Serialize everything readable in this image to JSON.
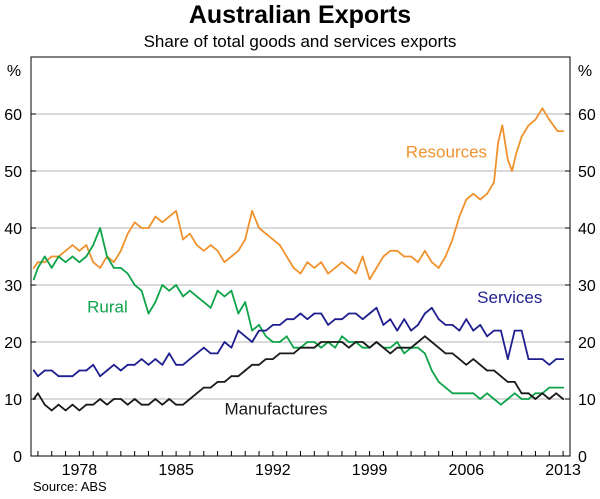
{
  "chart_data": {
    "type": "line",
    "title": "Australian Exports",
    "subtitle": "Share of total goods and services exports",
    "source": "Source: ABS",
    "ylabel_left": "%",
    "ylabel_right": "%",
    "xlim": [
      1974.5,
      2013.5
    ],
    "ylim": [
      0,
      70
    ],
    "yticks": [
      0,
      10,
      20,
      30,
      40,
      50,
      60
    ],
    "xticks": [
      1978,
      1985,
      1992,
      1999,
      2006,
      2013
    ],
    "grid": "horizontal",
    "series": [
      {
        "name": "Resources",
        "color": "#f0922e",
        "label_pos": [
          2007.5,
          52.4
        ],
        "label_anchor": "end",
        "x": [
          1974.7,
          1975.0,
          1975.5,
          1976.0,
          1976.5,
          1977.0,
          1977.5,
          1978.0,
          1978.5,
          1979.0,
          1979.5,
          1980.0,
          1980.5,
          1981.0,
          1981.5,
          1982.0,
          1982.5,
          1983.0,
          1983.5,
          1984.0,
          1984.5,
          1985.0,
          1985.5,
          1986.0,
          1986.5,
          1987.0,
          1987.5,
          1988.0,
          1988.5,
          1989.0,
          1989.5,
          1990.0,
          1990.5,
          1991.0,
          1991.5,
          1992.0,
          1992.5,
          1993.0,
          1993.5,
          1994.0,
          1994.5,
          1995.0,
          1995.5,
          1996.0,
          1996.5,
          1997.0,
          1997.5,
          1998.0,
          1998.5,
          1999.0,
          1999.5,
          2000.0,
          2000.5,
          2001.0,
          2001.5,
          2002.0,
          2002.5,
          2003.0,
          2003.5,
          2004.0,
          2004.5,
          2005.0,
          2005.5,
          2006.0,
          2006.5,
          2007.0,
          2007.5,
          2008.0,
          2008.3,
          2008.6,
          2009.0,
          2009.3,
          2009.6,
          2010.0,
          2010.5,
          2011.0,
          2011.5,
          2012.0,
          2012.3,
          2012.6,
          2013.0
        ],
        "values": [
          33,
          34,
          34,
          35,
          35,
          36,
          37,
          36,
          37,
          34,
          33,
          35,
          34,
          36,
          39,
          41,
          40,
          40,
          42,
          41,
          42,
          43,
          38,
          39,
          37,
          36,
          37,
          36,
          34,
          35,
          36,
          38,
          43,
          40,
          39,
          38,
          37,
          35,
          33,
          32,
          34,
          33,
          34,
          32,
          33,
          34,
          33,
          32,
          35,
          31,
          33,
          35,
          36,
          36,
          35,
          35,
          34,
          36,
          34,
          33,
          35,
          38,
          42,
          45,
          46,
          45,
          46,
          48,
          55,
          58,
          52,
          50,
          53,
          56,
          58,
          59,
          61,
          59,
          58,
          57,
          57
        ]
      },
      {
        "name": "Rural",
        "color": "#10a44a",
        "label_pos": [
          1981.5,
          25.2
        ],
        "label_anchor": "end",
        "x": [
          1974.7,
          1975.0,
          1975.5,
          1976.0,
          1976.5,
          1977.0,
          1977.5,
          1978.0,
          1978.5,
          1979.0,
          1979.5,
          1980.0,
          1980.5,
          1981.0,
          1981.5,
          1982.0,
          1982.5,
          1983.0,
          1983.5,
          1984.0,
          1984.5,
          1985.0,
          1985.5,
          1986.0,
          1986.5,
          1987.0,
          1987.5,
          1988.0,
          1988.5,
          1989.0,
          1989.5,
          1990.0,
          1990.5,
          1991.0,
          1991.5,
          1992.0,
          1992.5,
          1993.0,
          1993.5,
          1994.0,
          1994.5,
          1995.0,
          1995.5,
          1996.0,
          1996.5,
          1997.0,
          1997.5,
          1998.0,
          1998.5,
          1999.0,
          1999.5,
          2000.0,
          2000.5,
          2001.0,
          2001.5,
          2002.0,
          2002.5,
          2003.0,
          2003.5,
          2004.0,
          2004.5,
          2005.0,
          2005.5,
          2006.0,
          2006.5,
          2007.0,
          2007.5,
          2008.0,
          2008.5,
          2009.0,
          2009.5,
          2010.0,
          2010.5,
          2011.0,
          2011.5,
          2012.0,
          2012.5,
          2013.0
        ],
        "values": [
          31,
          33,
          35,
          33,
          35,
          34,
          35,
          34,
          35,
          37,
          40,
          35,
          33,
          33,
          32,
          30,
          29,
          25,
          27,
          30,
          29,
          30,
          28,
          29,
          28,
          27,
          26,
          29,
          28,
          29,
          25,
          27,
          22,
          23,
          21,
          20,
          20,
          21,
          19,
          19,
          20,
          20,
          19,
          20,
          19,
          21,
          20,
          20,
          19,
          19,
          20,
          19,
          19,
          20,
          18,
          19,
          19,
          18,
          15,
          13,
          12,
          11,
          11,
          11,
          11,
          10,
          11,
          10,
          9,
          10,
          11,
          10,
          10,
          11,
          11,
          12,
          12,
          12
        ]
      },
      {
        "name": "Services",
        "color": "#1f1f8f",
        "label_pos": [
          2011.5,
          26.8
        ],
        "label_anchor": "end",
        "x": [
          1974.7,
          1975.0,
          1975.5,
          1976.0,
          1976.5,
          1977.0,
          1977.5,
          1978.0,
          1978.5,
          1979.0,
          1979.5,
          1980.0,
          1980.5,
          1981.0,
          1981.5,
          1982.0,
          1982.5,
          1983.0,
          1983.5,
          1984.0,
          1984.5,
          1985.0,
          1985.5,
          1986.0,
          1986.5,
          1987.0,
          1987.5,
          1988.0,
          1988.5,
          1989.0,
          1989.5,
          1990.0,
          1990.5,
          1991.0,
          1991.5,
          1992.0,
          1992.5,
          1993.0,
          1993.5,
          1994.0,
          1994.5,
          1995.0,
          1995.5,
          1996.0,
          1996.5,
          1997.0,
          1997.5,
          1998.0,
          1998.5,
          1999.0,
          1999.5,
          2000.0,
          2000.5,
          2001.0,
          2001.5,
          2002.0,
          2002.5,
          2003.0,
          2003.5,
          2004.0,
          2004.5,
          2005.0,
          2005.5,
          2006.0,
          2006.5,
          2007.0,
          2007.5,
          2008.0,
          2008.5,
          2009.0,
          2009.5,
          2010.0,
          2010.5,
          2011.0,
          2011.5,
          2012.0,
          2012.5,
          2013.0
        ],
        "values": [
          15,
          14,
          15,
          15,
          14,
          14,
          14,
          15,
          15,
          16,
          14,
          15,
          16,
          15,
          16,
          16,
          17,
          16,
          17,
          16,
          18,
          16,
          16,
          17,
          18,
          19,
          18,
          18,
          20,
          19,
          22,
          21,
          20,
          22,
          22,
          23,
          23,
          24,
          24,
          25,
          24,
          25,
          25,
          23,
          24,
          24,
          25,
          25,
          24,
          25,
          26,
          23,
          24,
          22,
          24,
          22,
          23,
          25,
          26,
          24,
          23,
          23,
          22,
          24,
          22,
          23,
          21,
          22,
          22,
          17,
          22,
          22,
          17,
          17,
          17,
          16,
          17,
          17
        ]
      },
      {
        "name": "Manufactures",
        "color": "#1a1a1a",
        "label_pos": [
          1988.5,
          7.3
        ],
        "label_anchor": "start",
        "x": [
          1974.7,
          1975.0,
          1975.5,
          1976.0,
          1976.5,
          1977.0,
          1977.5,
          1978.0,
          1978.5,
          1979.0,
          1979.5,
          1980.0,
          1980.5,
          1981.0,
          1981.5,
          1982.0,
          1982.5,
          1983.0,
          1983.5,
          1984.0,
          1984.5,
          1985.0,
          1985.5,
          1986.0,
          1986.5,
          1987.0,
          1987.5,
          1988.0,
          1988.5,
          1989.0,
          1989.5,
          1990.0,
          1990.5,
          1991.0,
          1991.5,
          1992.0,
          1992.5,
          1993.0,
          1993.5,
          1994.0,
          1994.5,
          1995.0,
          1995.5,
          1996.0,
          1996.5,
          1997.0,
          1997.5,
          1998.0,
          1998.5,
          1999.0,
          1999.5,
          2000.0,
          2000.5,
          2001.0,
          2001.5,
          2002.0,
          2002.5,
          2003.0,
          2003.5,
          2004.0,
          2004.5,
          2005.0,
          2005.5,
          2006.0,
          2006.5,
          2007.0,
          2007.5,
          2008.0,
          2008.5,
          2009.0,
          2009.5,
          2010.0,
          2010.5,
          2011.0,
          2011.5,
          2012.0,
          2012.5,
          2013.0
        ],
        "values": [
          10,
          11,
          9,
          8,
          9,
          8,
          9,
          8,
          9,
          9,
          10,
          9,
          10,
          10,
          9,
          10,
          9,
          9,
          10,
          9,
          10,
          9,
          9,
          10,
          11,
          12,
          12,
          13,
          13,
          14,
          14,
          15,
          16,
          16,
          17,
          17,
          18,
          18,
          18,
          19,
          19,
          19,
          20,
          20,
          20,
          20,
          19,
          20,
          20,
          19,
          20,
          19,
          18,
          19,
          19,
          19,
          20,
          21,
          20,
          19,
          18,
          18,
          17,
          16,
          17,
          16,
          15,
          15,
          14,
          13,
          13,
          11,
          11,
          10,
          11,
          10,
          11,
          10
        ]
      }
    ]
  }
}
